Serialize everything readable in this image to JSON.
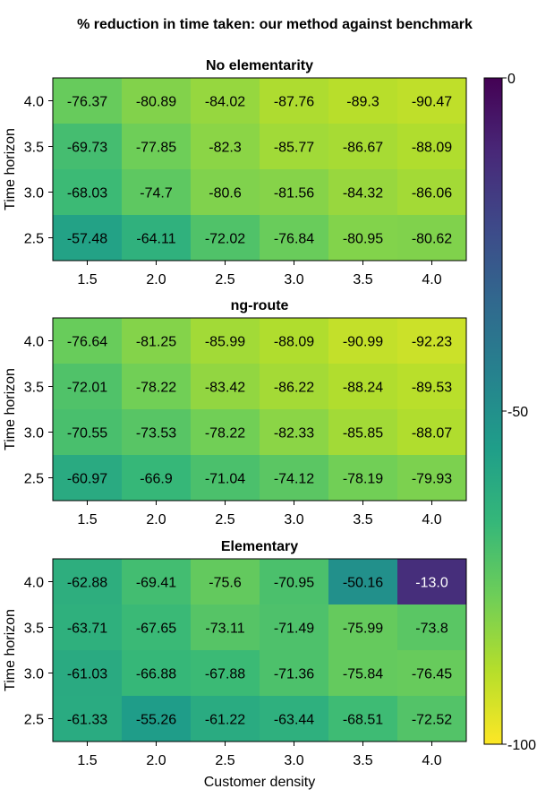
{
  "figure_title": "% reduction in time taken: our method against benchmark",
  "colorbar": {
    "min": -100,
    "max": 0,
    "ticks": [
      "0",
      "-50",
      "-100"
    ],
    "tick_values": [
      0,
      -50,
      -100
    ],
    "colormap": "viridis (reversed: -100 = yellow, 0 = dark purple)",
    "stops": [
      "#fde725",
      "#b5de2b",
      "#6ece58",
      "#35b779",
      "#1f9e89",
      "#26828e",
      "#31688e",
      "#3e4989",
      "#482878",
      "#440154"
    ]
  },
  "chart_data": [
    {
      "type": "heatmap",
      "title": "No elementarity",
      "xlabel": "",
      "ylabel": "Time horizon",
      "x_ticks": [
        "1.5",
        "2.0",
        "2.5",
        "3.0",
        "3.5",
        "4.0"
      ],
      "y_ticks_top_to_bottom": [
        "4.0",
        "3.5",
        "3.0",
        "2.5"
      ],
      "values": [
        [
          "-76.37",
          "-80.89",
          "-84.02",
          "-87.76",
          "-89.3",
          "-90.47"
        ],
        [
          "-69.73",
          "-77.85",
          "-82.3",
          "-85.77",
          "-86.67",
          "-88.09"
        ],
        [
          "-68.03",
          "-74.7",
          "-80.6",
          "-81.56",
          "-84.32",
          "-86.06"
        ],
        [
          "-57.48",
          "-64.11",
          "-72.02",
          "-76.84",
          "-80.95",
          "-80.62"
        ]
      ]
    },
    {
      "type": "heatmap",
      "title": "ng-route",
      "xlabel": "",
      "ylabel": "Time horizon",
      "x_ticks": [
        "1.5",
        "2.0",
        "2.5",
        "3.0",
        "3.5",
        "4.0"
      ],
      "y_ticks_top_to_bottom": [
        "4.0",
        "3.5",
        "3.0",
        "2.5"
      ],
      "values": [
        [
          "-76.64",
          "-81.25",
          "-85.99",
          "-88.09",
          "-90.99",
          "-92.23"
        ],
        [
          "-72.01",
          "-78.22",
          "-83.42",
          "-86.22",
          "-88.24",
          "-89.53"
        ],
        [
          "-70.55",
          "-73.53",
          "-78.22",
          "-82.33",
          "-85.85",
          "-88.07"
        ],
        [
          "-60.97",
          "-66.9",
          "-71.04",
          "-74.12",
          "-78.19",
          "-79.93"
        ]
      ]
    },
    {
      "type": "heatmap",
      "title": "Elementary",
      "xlabel": "Customer density",
      "ylabel": "Time horizon",
      "x_ticks": [
        "1.5",
        "2.0",
        "2.5",
        "3.0",
        "3.5",
        "4.0"
      ],
      "y_ticks_top_to_bottom": [
        "4.0",
        "3.5",
        "3.0",
        "2.5"
      ],
      "values": [
        [
          "-62.88",
          "-69.41",
          "-75.6",
          "-70.95",
          "-50.16",
          "-13.0"
        ],
        [
          "-63.71",
          "-67.65",
          "-73.11",
          "-71.49",
          "-75.99",
          "-73.8"
        ],
        [
          "-61.03",
          "-66.88",
          "-67.88",
          "-71.36",
          "-75.84",
          "-76.45"
        ],
        [
          "-61.33",
          "-55.26",
          "-61.22",
          "-63.44",
          "-68.51",
          "-72.52"
        ]
      ]
    }
  ]
}
